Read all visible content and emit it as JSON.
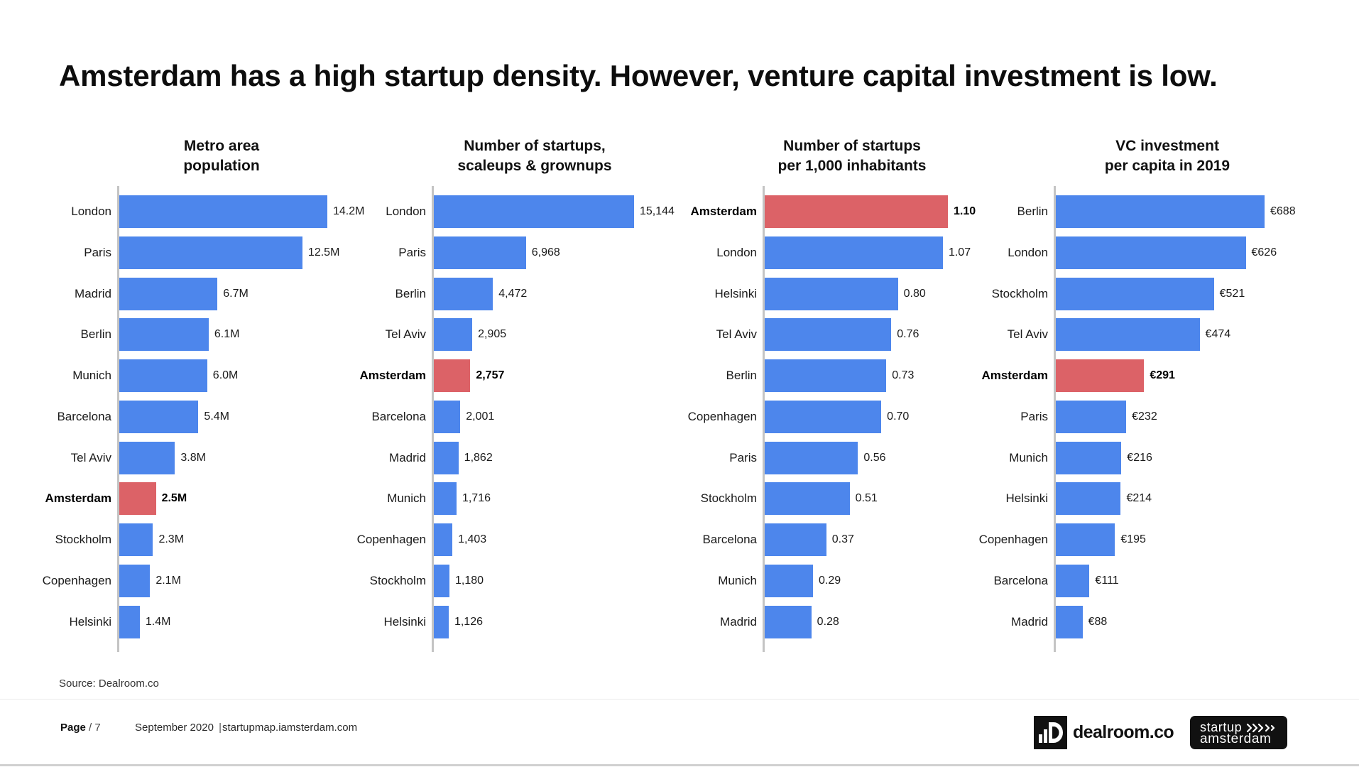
{
  "page": {
    "title": "Amsterdam has a high startup density. However, venture capital investment is low.",
    "source": "Source: Dealroom.co"
  },
  "colors": {
    "bar": "#4D86EC",
    "highlight": "#DC6267",
    "axis": "#C4C4C4",
    "text": "#111111"
  },
  "chart_data": [
    {
      "type": "bar",
      "orientation": "horizontal",
      "title_lines": [
        "Metro area",
        "population"
      ],
      "categories": [
        "London",
        "Paris",
        "Madrid",
        "Berlin",
        "Munich",
        "Barcelona",
        "Tel Aviv",
        "Amsterdam",
        "Stockholm",
        "Copenhagen",
        "Helsinki"
      ],
      "values": [
        14.2,
        12.5,
        6.7,
        6.1,
        6.0,
        5.4,
        3.8,
        2.5,
        2.3,
        2.1,
        1.4
      ],
      "value_labels": [
        "14.2M",
        "12.5M",
        "6.7M",
        "6.1M",
        "6.0M",
        "5.4M",
        "3.8M",
        "2.5M",
        "2.3M",
        "2.1M",
        "1.4M"
      ],
      "highlighted": [
        false,
        false,
        false,
        false,
        false,
        false,
        false,
        true,
        false,
        false,
        false
      ]
    },
    {
      "type": "bar",
      "orientation": "horizontal",
      "title_lines": [
        "Number of startups,",
        "scaleups & grownups"
      ],
      "categories": [
        "London",
        "Paris",
        "Berlin",
        "Tel Aviv",
        "Amsterdam",
        "Barcelona",
        "Madrid",
        "Munich",
        "Copenhagen",
        "Stockholm",
        "Helsinki"
      ],
      "values": [
        15144,
        6968,
        4472,
        2905,
        2757,
        2001,
        1862,
        1716,
        1403,
        1180,
        1126
      ],
      "value_labels": [
        "15,144",
        "6,968",
        "4,472",
        "2,905",
        "2,757",
        "2,001",
        "1,862",
        "1,716",
        "1,403",
        "1,180",
        "1,126"
      ],
      "highlighted": [
        false,
        false,
        false,
        false,
        true,
        false,
        false,
        false,
        false,
        false,
        false
      ]
    },
    {
      "type": "bar",
      "orientation": "horizontal",
      "title_lines": [
        "Number of startups",
        "per 1,000 inhabitants"
      ],
      "categories": [
        "Amsterdam",
        "London",
        "Helsinki",
        "Tel Aviv",
        "Berlin",
        "Copenhagen",
        "Paris",
        "Stockholm",
        "Barcelona",
        "Munich",
        "Madrid"
      ],
      "values": [
        1.1,
        1.07,
        0.8,
        0.76,
        0.73,
        0.7,
        0.56,
        0.51,
        0.37,
        0.29,
        0.28
      ],
      "value_labels": [
        "1.10",
        "1.07",
        "0.80",
        "0.76",
        "0.73",
        "0.70",
        "0.56",
        "0.51",
        "0.37",
        "0.29",
        "0.28"
      ],
      "highlighted": [
        true,
        false,
        false,
        false,
        false,
        false,
        false,
        false,
        false,
        false,
        false
      ]
    },
    {
      "type": "bar",
      "orientation": "horizontal",
      "title_lines": [
        "VC investment",
        "per capita in 2019"
      ],
      "categories": [
        "Berlin",
        "London",
        "Stockholm",
        "Tel Aviv",
        "Amsterdam",
        "Paris",
        "Munich",
        "Helsinki",
        "Copenhagen",
        "Barcelona",
        "Madrid"
      ],
      "values": [
        688,
        626,
        521,
        474,
        291,
        232,
        216,
        214,
        195,
        111,
        88
      ],
      "value_labels": [
        "€688",
        "€626",
        "€521",
        "€474",
        "€291",
        "€232",
        "€216",
        "€214",
        "€195",
        "€111",
        "€88"
      ],
      "highlighted": [
        false,
        false,
        false,
        false,
        true,
        false,
        false,
        false,
        false,
        false,
        false
      ]
    }
  ],
  "footer": {
    "page_label": "Page",
    "page_number": "/ 7",
    "date": "September 2020",
    "separator": "|",
    "site": "startupmap.iamsterdam.com"
  },
  "logos": {
    "dealroom": {
      "name": "dealroom.co",
      "icon": "dealroom-d-icon"
    },
    "startup_amsterdam": {
      "line1": "startup",
      "line2": "amsterdam",
      "icon": "chevrons-icon"
    }
  }
}
